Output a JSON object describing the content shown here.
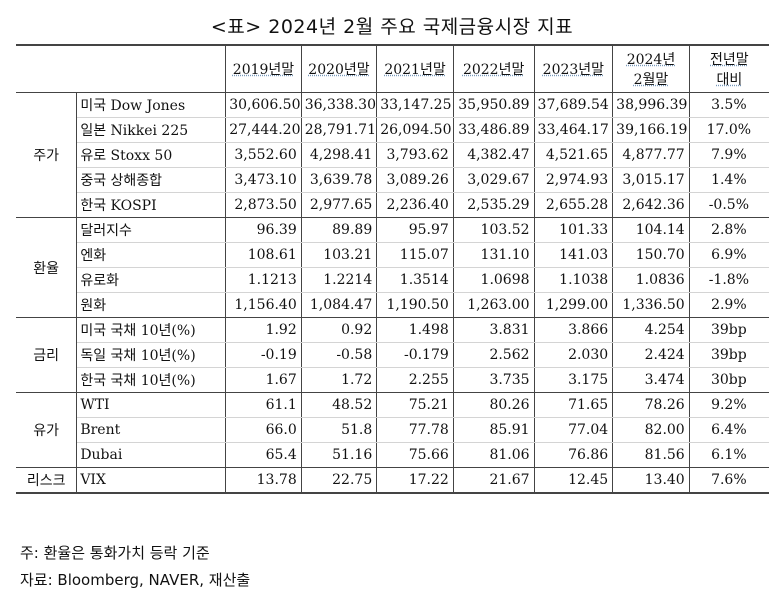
{
  "title": "<표> 2024년 2월 주요 국제금융시장 지표",
  "headers": [
    "2019년말",
    "2020년말",
    "2021년말",
    "2022년말",
    "2023년말",
    "2024년\n2월말",
    "전년말\n대비"
  ],
  "groups": [
    {
      "category": "주가",
      "rows": [
        {
          "name": "미국 Dow Jones",
          "values": [
            "30,606.50",
            "36,338.30",
            "33,147.25",
            "35,950.89",
            "37,689.54",
            "38,996.39"
          ],
          "change": "3.5%"
        },
        {
          "name": "일본 Nikkei 225",
          "values": [
            "27,444.20",
            "28,791.71",
            "26,094.50",
            "33,486.89",
            "33,464.17",
            "39,166.19"
          ],
          "change": "17.0%"
        },
        {
          "name": "유로 Stoxx 50",
          "values": [
            "3,552.60",
            "4,298.41",
            "3,793.62",
            "4,382.47",
            "4,521.65",
            "4,877.77"
          ],
          "change": "7.9%"
        },
        {
          "name": "중국 상해종합",
          "values": [
            "3,473.10",
            "3,639.78",
            "3,089.26",
            "3,029.67",
            "2,974.93",
            "3,015.17"
          ],
          "change": "1.4%"
        },
        {
          "name": "한국 KOSPI",
          "values": [
            "2,873.50",
            "2,977.65",
            "2,236.40",
            "2,535.29",
            "2,655.28",
            "2,642.36"
          ],
          "change": "-0.5%"
        }
      ]
    },
    {
      "category": "환율",
      "rows": [
        {
          "name": "달러지수",
          "values": [
            "96.39",
            "89.89",
            "95.97",
            "103.52",
            "101.33",
            "104.14"
          ],
          "change": "2.8%"
        },
        {
          "name": "엔화",
          "values": [
            "108.61",
            "103.21",
            "115.07",
            "131.10",
            "141.03",
            "150.70"
          ],
          "change": "6.9%"
        },
        {
          "name": "유로화",
          "values": [
            "1.1213",
            "1.2214",
            "1.3514",
            "1.0698",
            "1.1038",
            "1.0836"
          ],
          "change": "-1.8%"
        },
        {
          "name": "원화",
          "values": [
            "1,156.40",
            "1,084.47",
            "1,190.50",
            "1,263.00",
            "1,299.00",
            "1,336.50"
          ],
          "change": "2.9%"
        }
      ]
    },
    {
      "category": "금리",
      "rows": [
        {
          "name": "미국 국채 10년(%)",
          "values": [
            "1.92",
            "0.92",
            "1.498",
            "3.831",
            "3.866",
            "4.254"
          ],
          "change": "39bp"
        },
        {
          "name": "독일 국채 10년(%)",
          "values": [
            "-0.19",
            "-0.58",
            "-0.179",
            "2.562",
            "2.030",
            "2.424"
          ],
          "change": "39bp"
        },
        {
          "name": "한국 국채 10년(%)",
          "values": [
            "1.67",
            "1.72",
            "2.255",
            "3.735",
            "3.175",
            "3.474"
          ],
          "change": "30bp"
        }
      ]
    },
    {
      "category": "유가",
      "rows": [
        {
          "name": "WTI",
          "values": [
            "61.1",
            "48.52",
            "75.21",
            "80.26",
            "71.65",
            "78.26"
          ],
          "change": "9.2%"
        },
        {
          "name": "Brent",
          "values": [
            "66.0",
            "51.8",
            "77.78",
            "85.91",
            "77.04",
            "82.00"
          ],
          "change": "6.4%"
        },
        {
          "name": "Dubai",
          "values": [
            "65.4",
            "51.16",
            "75.66",
            "81.06",
            "76.86",
            "81.56"
          ],
          "change": "6.1%"
        }
      ]
    },
    {
      "category": "리스크",
      "rows": [
        {
          "name": "VIX",
          "values": [
            "13.78",
            "22.75",
            "17.22",
            "21.67",
            "12.45",
            "13.40"
          ],
          "change": "7.6%"
        }
      ]
    }
  ],
  "notes": [
    "주: 환율은 통화가치 등락 기준",
    "자료: Bloomberg, NAVER, 재산출"
  ]
}
